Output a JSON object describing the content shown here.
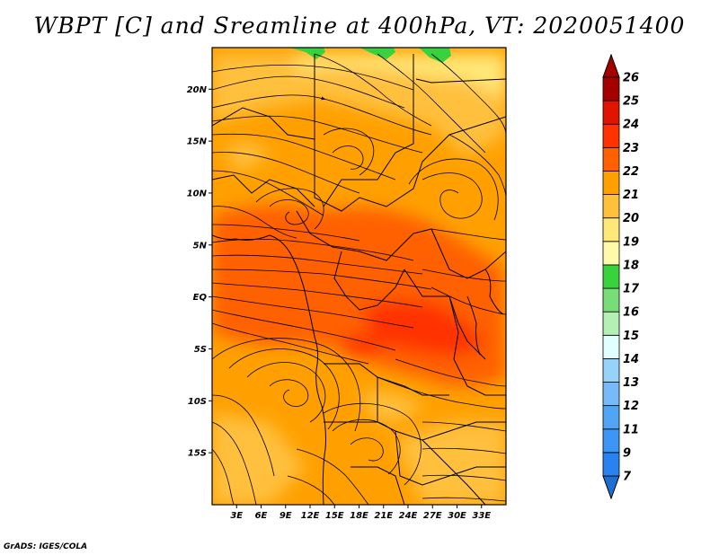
{
  "title": "WBPT [C] and Sreamline at 400hPa, VT: 2020051400",
  "credit": "GrADS: IGES/COLA",
  "map": {
    "lat_range": [
      -20,
      24
    ],
    "lon_range": [
      0,
      36
    ],
    "lat_ticks": [
      {
        "value": 20,
        "label": "20N"
      },
      {
        "value": 15,
        "label": "15N"
      },
      {
        "value": 10,
        "label": "10N"
      },
      {
        "value": 5,
        "label": "5N"
      },
      {
        "value": 0,
        "label": "EQ"
      },
      {
        "value": -5,
        "label": "5S"
      },
      {
        "value": -10,
        "label": "10S"
      },
      {
        "value": -15,
        "label": "15S"
      }
    ],
    "lon_ticks": [
      {
        "value": 3,
        "label": "3E"
      },
      {
        "value": 6,
        "label": "6E"
      },
      {
        "value": 9,
        "label": "9E"
      },
      {
        "value": 12,
        "label": "12E"
      },
      {
        "value": 15,
        "label": "15E"
      },
      {
        "value": 18,
        "label": "18E"
      },
      {
        "value": 21,
        "label": "21E"
      },
      {
        "value": 24,
        "label": "24E"
      },
      {
        "value": 27,
        "label": "27E"
      },
      {
        "value": 30,
        "label": "30E"
      },
      {
        "value": 33,
        "label": "33E"
      }
    ]
  },
  "colorbar": {
    "bins": [
      {
        "label": "7",
        "color": "#1e6ed2"
      },
      {
        "label": "9",
        "color": "#2882f0"
      },
      {
        "label": "11",
        "color": "#3c96f5"
      },
      {
        "label": "12",
        "color": "#50a5f5"
      },
      {
        "label": "13",
        "color": "#78b9fa"
      },
      {
        "label": "14",
        "color": "#96d2fa"
      },
      {
        "label": "15",
        "color": "#e1ffff"
      },
      {
        "label": "16",
        "color": "#b4f0b4"
      },
      {
        "label": "17",
        "color": "#78dc78"
      },
      {
        "label": "18",
        "color": "#37d23c"
      },
      {
        "label": "19",
        "color": "#fffaaa"
      },
      {
        "label": "20",
        "color": "#ffe878"
      },
      {
        "label": "21",
        "color": "#ffc03c"
      },
      {
        "label": "22",
        "color": "#ffa000"
      },
      {
        "label": "23",
        "color": "#ff6000"
      },
      {
        "label": "24",
        "color": "#ff3200"
      },
      {
        "label": "25",
        "color": "#e11400"
      },
      {
        "label": "26",
        "color": "#a50000"
      }
    ],
    "under_color": "#1e6ed2",
    "over_color": "#a50000"
  }
}
